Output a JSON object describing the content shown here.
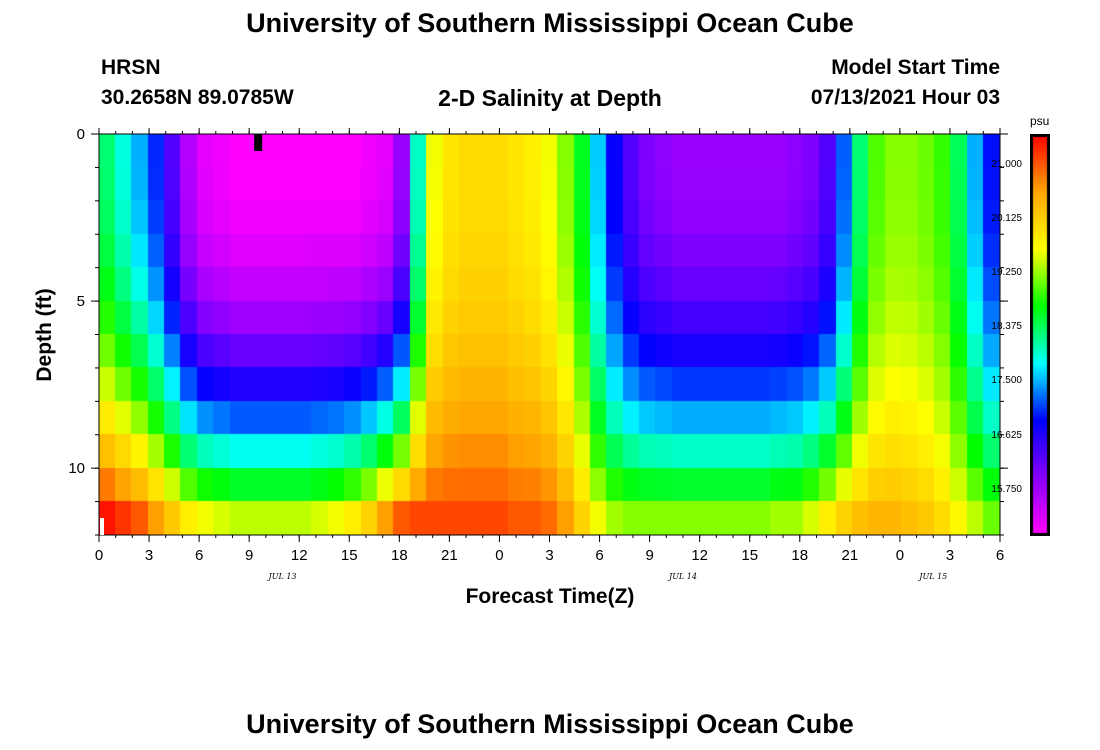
{
  "header": {
    "title": "University of Southern Mississippi Ocean Cube",
    "station": "HRSN",
    "coords": "30.2658N  89.0785W",
    "plot_title": "2-D Salinity at Depth",
    "model_label": "Model Start Time",
    "model_time": "07/13/2021 Hour 03"
  },
  "footer": {
    "title": "University of Southern Mississippi Ocean Cube"
  },
  "colors": {
    "scale": [
      "#ff00ff",
      "#8a00ff",
      "#0000ff",
      "#00ffff",
      "#00ff00",
      "#ffff00",
      "#ffa500",
      "#ff0000"
    ]
  },
  "chart_data": {
    "type": "heatmap",
    "title": "2-D Salinity at Depth",
    "xlabel": "Forecast Time(Z)",
    "ylabel": "Depth (ft)",
    "x_ticks": [
      "0",
      "3",
      "6",
      "9",
      "12",
      "15",
      "18",
      "21",
      "0",
      "3",
      "6",
      "9",
      "12",
      "15",
      "18",
      "21",
      "0",
      "3",
      "6"
    ],
    "x_range_hours": [
      0,
      54
    ],
    "date_labels": [
      {
        "label": "JUL 13",
        "hour": 11
      },
      {
        "label": "JUL 14",
        "hour": 35
      },
      {
        "label": "JUL 15",
        "hour": 50
      }
    ],
    "y_ticks": [
      "0",
      "5",
      "10"
    ],
    "y_tick_values": [
      0,
      5,
      10
    ],
    "y_range_ft": [
      0,
      12
    ],
    "depth_levels": 12,
    "colorbar": {
      "unit": "psu",
      "min": 15.0,
      "max": 21.5,
      "tick_labels": [
        "21.000",
        "20.125",
        "19.250",
        "18.375",
        "17.500",
        "16.625",
        "15.750"
      ],
      "tick_values": [
        21.0,
        20.125,
        19.25,
        18.375,
        17.5,
        16.625,
        15.75
      ]
    },
    "surface_salinity_by_hour": [
      18.3,
      17.9,
      17.5,
      17.0,
      16.3,
      15.6,
      15.2,
      15.1,
      15.0,
      15.0,
      15.0,
      15.0,
      15.0,
      15.0,
      15.0,
      15.0,
      15.1,
      15.2,
      15.8,
      18.0,
      19.6,
      19.9,
      20.0,
      20.0,
      20.0,
      19.9,
      19.8,
      19.6,
      19.2,
      18.6,
      17.6,
      16.8,
      16.3,
      16.0,
      15.9,
      15.8,
      15.8,
      15.8,
      15.8,
      15.8,
      15.8,
      15.8,
      15.9,
      16.0,
      16.3,
      17.2,
      18.3,
      19.0,
      19.2,
      19.2,
      19.1,
      18.9,
      18.4,
      17.5,
      16.9
    ],
    "bottom_salinity_by_hour": [
      21.4,
      21.2,
      21.0,
      20.6,
      20.2,
      19.8,
      19.6,
      19.5,
      19.4,
      19.4,
      19.4,
      19.4,
      19.4,
      19.5,
      19.6,
      19.8,
      20.1,
      20.6,
      21.0,
      21.1,
      21.1,
      21.1,
      21.1,
      21.1,
      21.1,
      21.0,
      21.0,
      20.9,
      20.6,
      20.1,
      19.6,
      19.3,
      19.2,
      19.2,
      19.2,
      19.2,
      19.2,
      19.2,
      19.2,
      19.2,
      19.2,
      19.3,
      19.3,
      19.5,
      19.8,
      20.1,
      20.3,
      20.4,
      20.4,
      20.3,
      20.2,
      20.0,
      19.7,
      19.4,
      19.1
    ]
  }
}
